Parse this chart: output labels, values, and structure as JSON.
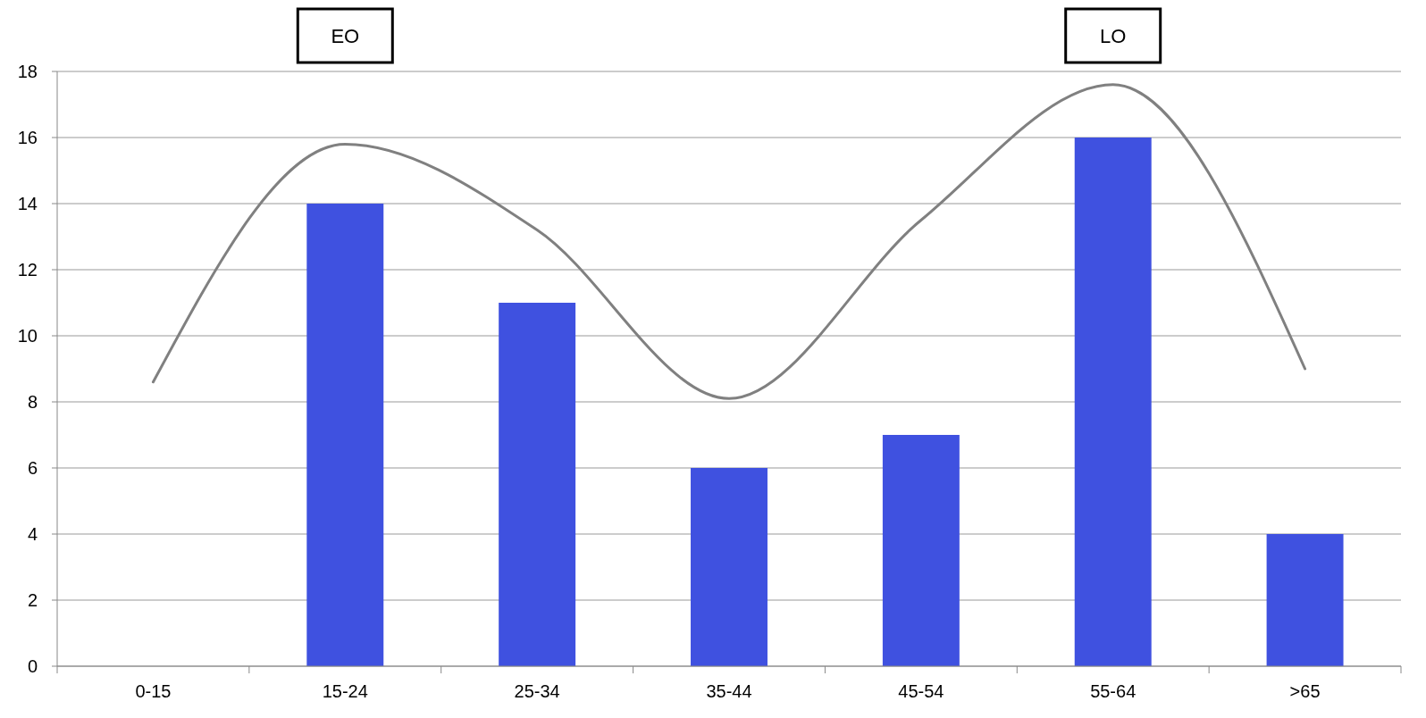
{
  "chart_data": {
    "type": "bar",
    "categories": [
      "0-15",
      "15-24",
      "25-34",
      "35-44",
      "45-54",
      "55-64",
      ">65"
    ],
    "series": [
      {
        "color": "#3f51e0",
        "values": [
          0,
          14,
          11,
          6,
          7,
          16,
          4
        ]
      },
      {
        "type": "line",
        "color": "#808080",
        "values": [
          8.6,
          15.8,
          13.2,
          8.1,
          13.5,
          17.6,
          9
        ]
      }
    ],
    "ylim": [
      0,
      18
    ],
    "yticks": [
      0,
      2,
      4,
      6,
      8,
      10,
      12,
      14,
      16,
      18
    ],
    "grid": "y",
    "annotations": [
      "EO",
      "LO"
    ]
  }
}
